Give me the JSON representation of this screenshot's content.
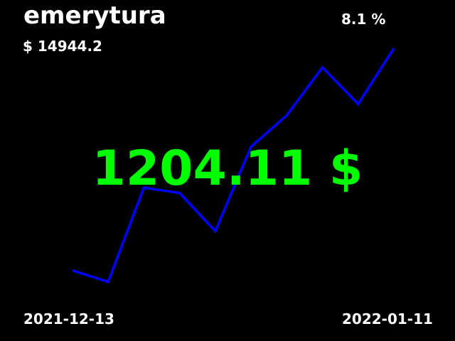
{
  "header": {
    "title": "emerytura",
    "total": "$ 14944.2",
    "change": "8.1 %"
  },
  "main_value": "1204.11 $",
  "footer": {
    "start_date": "2021-12-13",
    "end_date": "2022-01-11"
  },
  "chart_data": {
    "type": "line",
    "x": [
      "2021-12-13",
      "2021-12-16",
      "2021-12-19",
      "2021-12-23",
      "2021-12-26",
      "2021-12-29",
      "2022-01-01",
      "2022-01-05",
      "2022-01-08",
      "2022-01-11"
    ],
    "series": [
      {
        "color": "#0000ff",
        "values": [
          1022,
          1009,
          1117,
          1111,
          1067,
          1164,
          1200,
          1255,
          1213,
          1277
        ]
      }
    ],
    "ylim": [
      990,
      1290
    ],
    "grid": false,
    "axes_visible": false,
    "value_color": "#00ff00",
    "background": "#000000"
  }
}
